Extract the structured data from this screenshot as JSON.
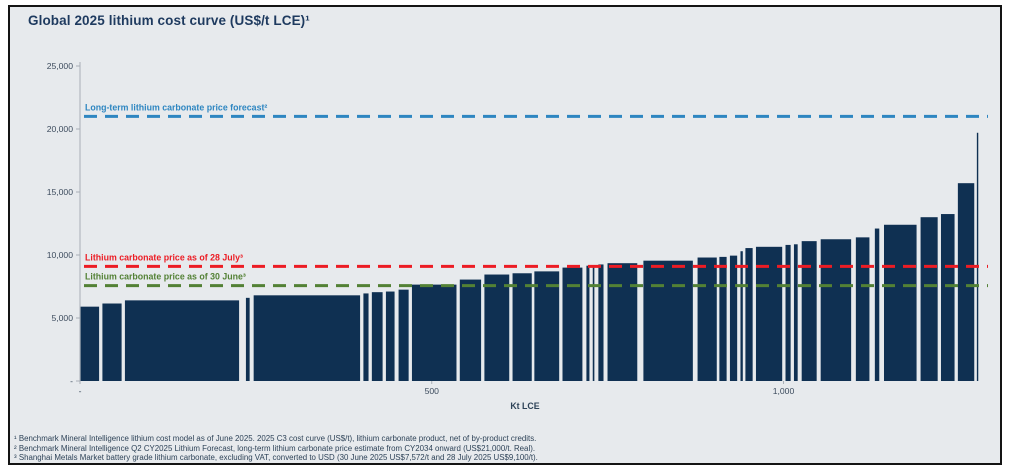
{
  "chart_data": {
    "type": "bar",
    "subtype": "cost-curve-step-chart",
    "title": "Global 2025 lithium cost curve (US$/t LCE)¹",
    "xlabel": "Kt LCE",
    "ylabel": "US$/t LCE",
    "xlim": [
      0,
      1290
    ],
    "ylim": [
      0,
      25000
    ],
    "grid": false,
    "bar_color": "#0f3052",
    "background_color": "#e7eaed",
    "y_ticks": [
      {
        "value": 0,
        "label": "-"
      },
      {
        "value": 5000,
        "label": "5,000"
      },
      {
        "value": 10000,
        "label": "10,000"
      },
      {
        "value": 15000,
        "label": "15,000"
      },
      {
        "value": 20000,
        "label": "20,000"
      },
      {
        "value": 25000,
        "label": "25,000"
      }
    ],
    "x_ticks": [
      {
        "value": 0,
        "label": "-"
      },
      {
        "value": 500,
        "label": "500"
      },
      {
        "value": 1000,
        "label": "1,000"
      }
    ],
    "segments_format": "[from_kt, to_kt, cost_usd_per_t]",
    "segments": [
      [
        0,
        28,
        5900
      ],
      [
        31,
        60,
        6150
      ],
      [
        63,
        227,
        6400
      ],
      [
        235,
        242,
        6600
      ],
      [
        246,
        399,
        6800
      ],
      [
        402,
        411,
        6950
      ],
      [
        414,
        431,
        7050
      ],
      [
        434,
        448,
        7100
      ],
      [
        452,
        468,
        7250
      ],
      [
        471,
        536,
        7650
      ],
      [
        539,
        571,
        8050
      ],
      [
        574,
        611,
        8450
      ],
      [
        614,
        643,
        8550
      ],
      [
        645,
        682,
        8700
      ],
      [
        685,
        715,
        9000
      ],
      [
        719,
        725,
        9150
      ],
      [
        728,
        732,
        9200
      ],
      [
        736,
        745,
        9250
      ],
      [
        749,
        793,
        9350
      ],
      [
        800,
        872,
        9550
      ],
      [
        877,
        906,
        9800
      ],
      [
        908,
        920,
        9850
      ],
      [
        923,
        935,
        9950
      ],
      [
        938,
        943,
        10300
      ],
      [
        945,
        957,
        10550
      ],
      [
        960,
        999,
        10650
      ],
      [
        1002,
        1011,
        10800
      ],
      [
        1014,
        1021,
        10850
      ],
      [
        1025,
        1048,
        11100
      ],
      [
        1052,
        1097,
        11250
      ],
      [
        1102,
        1123,
        11400
      ],
      [
        1129,
        1137,
        12100
      ],
      [
        1142,
        1190,
        12400
      ],
      [
        1194,
        1220,
        13000
      ],
      [
        1223,
        1244,
        13250
      ],
      [
        1247,
        1272,
        15700
      ],
      [
        1274,
        1277,
        19700
      ]
    ],
    "price_lines": [
      {
        "name": "long-term-forecast",
        "label": "Long-term lithium carbonate price forecast²",
        "value": 21000,
        "color": "#2e86c1"
      },
      {
        "name": "price-28-july",
        "label": "Lithium carbonate price as of 28 July³",
        "value": 9100,
        "color": "#ec1c24"
      },
      {
        "name": "price-30-june",
        "label": "Lithium carbonate price as of 30 June³",
        "value": 7572,
        "color": "#538135"
      }
    ]
  },
  "footnotes": [
    "¹ Benchmark Mineral Intelligence lithium cost model as of June 2025. 2025 C3 cost curve (US$/t), lithium carbonate product, net of by-product credits.",
    "² Benchmark Mineral Intelligence Q2 CY2025 Lithium Forecast, long-term lithium carbonate price estimate from CY2034 onward (US$21,000/t. Real).",
    "³ Shanghai Metals Market battery grade lithium carbonate, excluding VAT, converted to USD (30 June 2025 US$7,572/t and 28 July 2025 US$9,100/t)."
  ]
}
